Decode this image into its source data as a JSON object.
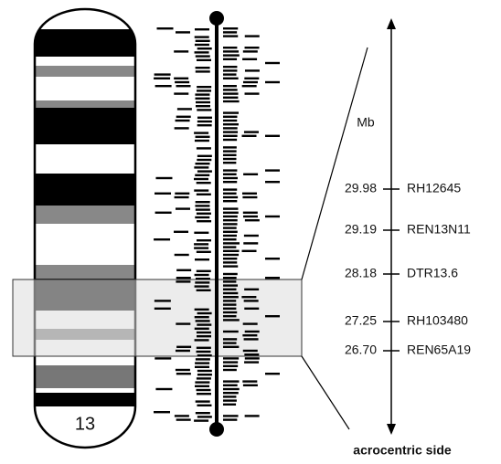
{
  "chromosome": {
    "label": "13"
  },
  "scale": {
    "unit": "Mb",
    "footer": "acrocentric side"
  },
  "markers": [
    {
      "position": "29.98",
      "name": "RH12645"
    },
    {
      "position": "29.19",
      "name": "REN13N11"
    },
    {
      "position": "28.18",
      "name": "DTR13.6"
    },
    {
      "position": "27.25",
      "name": "RH103480"
    },
    {
      "position": "26.70",
      "name": "REN65A19"
    }
  ]
}
